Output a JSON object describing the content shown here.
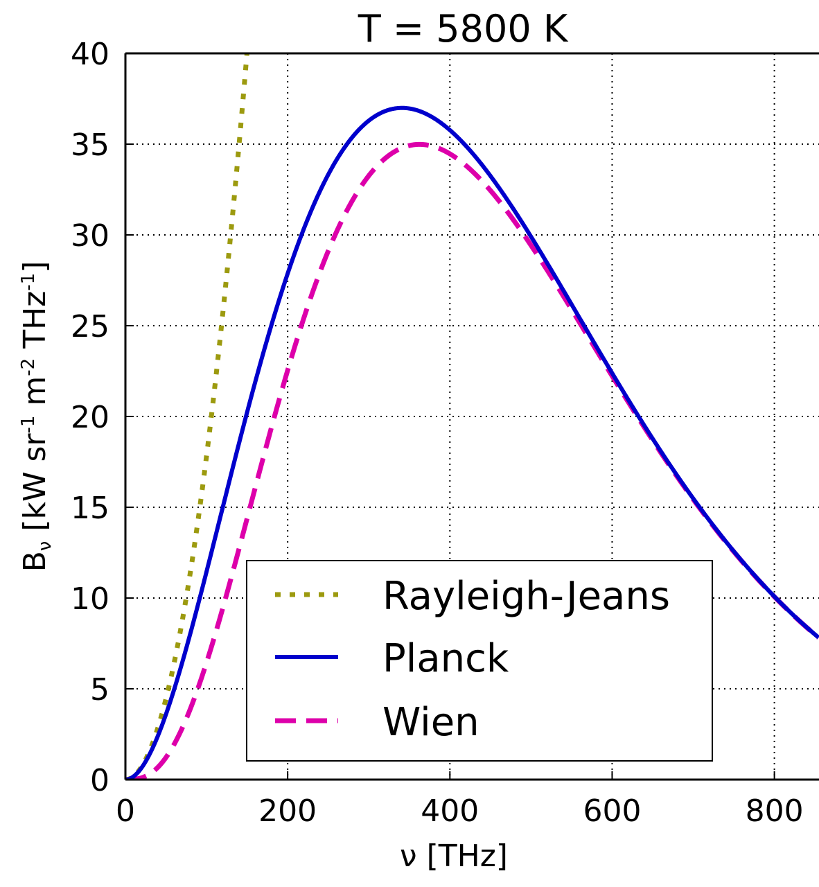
{
  "chart_data": {
    "type": "line",
    "title": "T = 5800 K",
    "xlabel": "ν [THz]",
    "ylabel": {
      "symbol": "B",
      "symbol_sub": "ν",
      "open": " [kW sr",
      "exp1": "-1",
      "mid": " m",
      "exp2": "-2",
      "tail": " THz",
      "exp3": "-1",
      "close": "]"
    },
    "xlim": [
      0,
      855
    ],
    "ylim": [
      0,
      40
    ],
    "x_ticks": [
      0,
      200,
      400,
      600,
      800
    ],
    "x_tick_labels": [
      "0",
      "200",
      "400",
      "600",
      "800"
    ],
    "y_ticks": [
      0,
      5,
      10,
      15,
      20,
      25,
      30,
      35,
      40
    ],
    "y_tick_labels": [
      "0",
      "5",
      "10",
      "15",
      "20",
      "25",
      "30",
      "35",
      "40"
    ],
    "grid": true,
    "grid_style": "dotted",
    "legend_position": "lower-center",
    "temperature_K": 5800,
    "series": [
      {
        "name": "Rayleigh-Jeans",
        "color": "#9c9a0f",
        "style": "dotted",
        "model": "rayleigh-jeans",
        "points": [
          [
            0,
            0
          ],
          [
            25,
            1.1
          ],
          [
            50,
            4.4
          ],
          [
            75,
            9.9
          ],
          [
            100,
            17.6
          ],
          [
            125,
            27.5
          ],
          [
            150,
            39.6
          ]
        ]
      },
      {
        "name": "Planck",
        "color": "#0000cc",
        "style": "solid",
        "model": "planck",
        "points": [
          [
            0,
            0
          ],
          [
            50,
            3.8
          ],
          [
            100,
            13.0
          ],
          [
            150,
            22.8
          ],
          [
            200,
            30.4
          ],
          [
            250,
            35.0
          ],
          [
            300,
            36.9
          ],
          [
            340,
            37.0
          ],
          [
            400,
            35.3
          ],
          [
            450,
            32.6
          ],
          [
            500,
            29.0
          ],
          [
            550,
            25.3
          ],
          [
            600,
            21.5
          ],
          [
            650,
            17.8
          ],
          [
            700,
            14.6
          ],
          [
            750,
            11.7
          ],
          [
            800,
            9.3
          ],
          [
            855,
            7.1
          ]
        ]
      },
      {
        "name": "Wien",
        "color": "#dd00aa",
        "style": "dashed",
        "model": "wien",
        "points": [
          [
            0,
            0
          ],
          [
            50,
            1.6
          ],
          [
            100,
            8.2
          ],
          [
            150,
            18.1
          ],
          [
            200,
            26.4
          ],
          [
            250,
            31.9
          ],
          [
            300,
            34.5
          ],
          [
            360,
            35.0
          ],
          [
            400,
            34.4
          ],
          [
            450,
            32.3
          ],
          [
            500,
            28.9
          ],
          [
            550,
            25.2
          ],
          [
            600,
            21.5
          ],
          [
            650,
            17.8
          ],
          [
            700,
            14.6
          ],
          [
            750,
            11.7
          ],
          [
            800,
            9.3
          ],
          [
            855,
            7.1
          ]
        ]
      }
    ]
  }
}
